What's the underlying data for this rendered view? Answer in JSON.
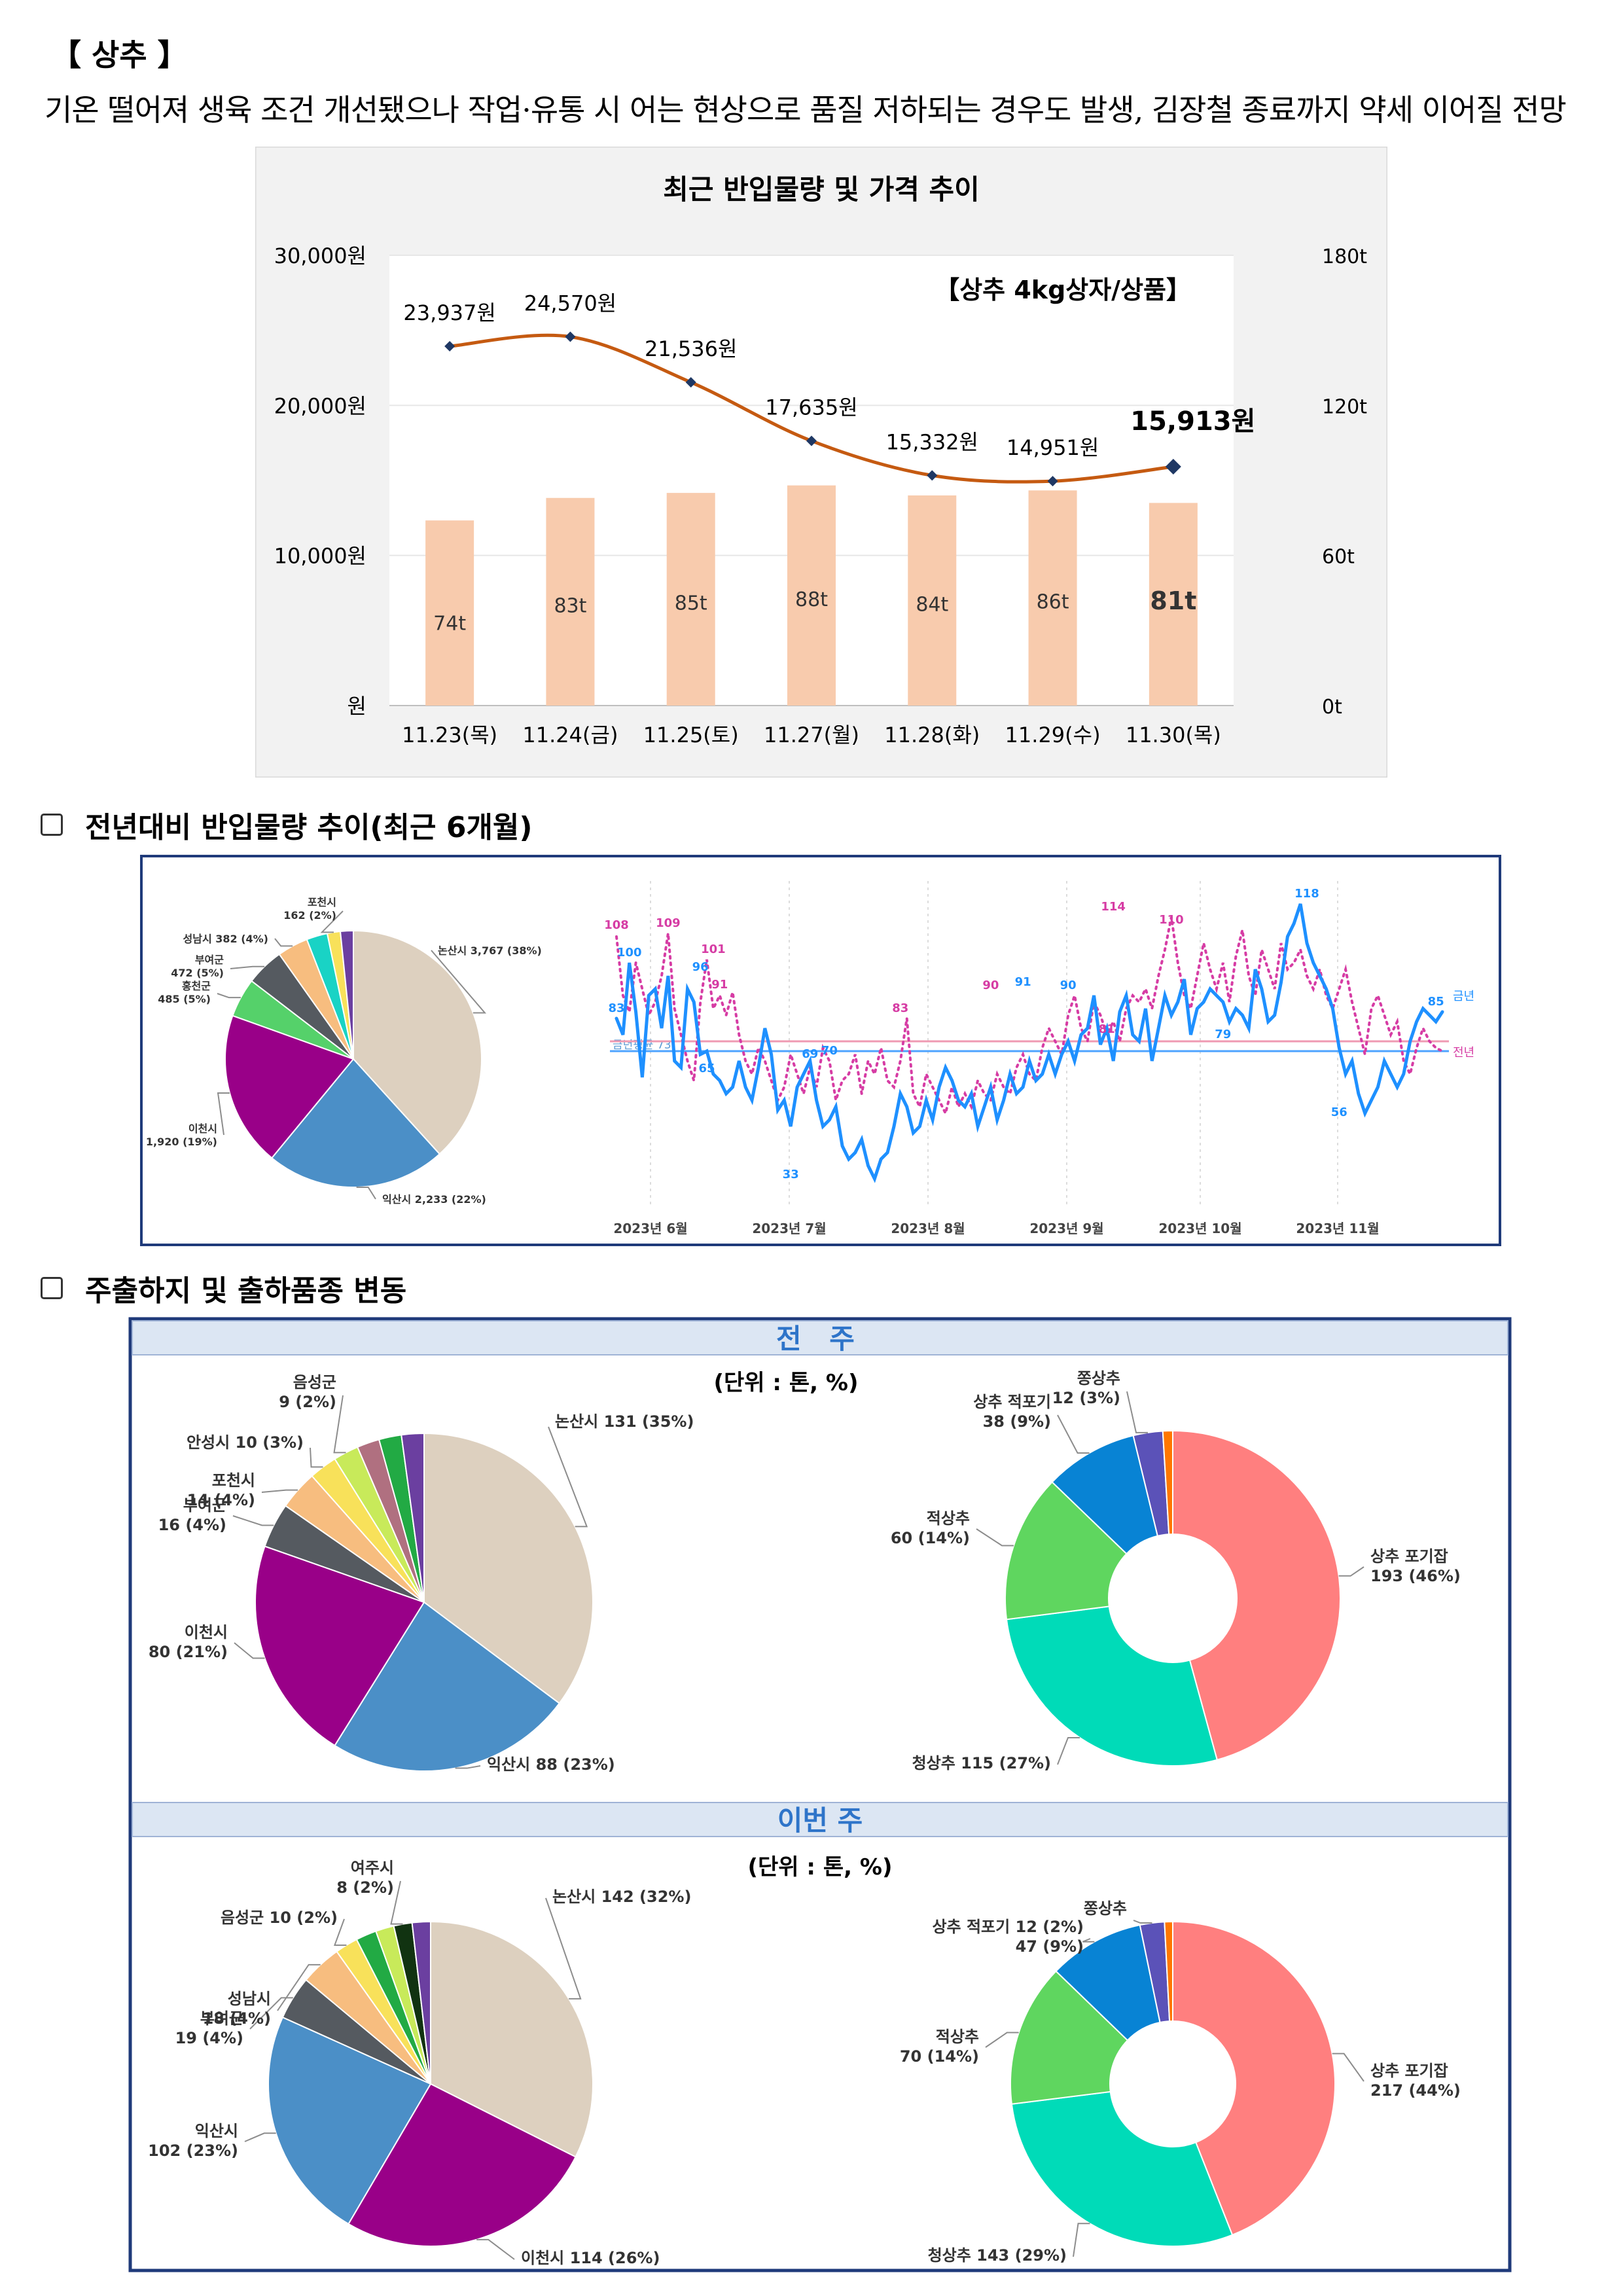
{
  "header": {
    "title": "【 상추 】",
    "subtitle": "기온 떨어져 생육 조건 개선됐으나 작업·유통 시 어는 현상으로 품질 저하되는 경우도 발생, 김장철 종료까지 약세 이어질 전망"
  },
  "sections": {
    "yoy": "전년대비 반입물량 추이(최근 6개월)",
    "shipping": "주출하지 및 출하품종 변동"
  },
  "chart_data": [
    {
      "id": "price_volume",
      "type": "bar+line",
      "title": "최근 반입물량 및 가격 추이",
      "annotation": "【상추 4kg상자/상품】",
      "categories": [
        "11.23(목)",
        "11.24(금)",
        "11.25(토)",
        "11.27(월)",
        "11.28(화)",
        "11.29(수)",
        "11.30(목)"
      ],
      "volume_t": [
        74,
        83,
        85,
        88,
        84,
        86,
        81
      ],
      "volume_labels": [
        "74t",
        "83t",
        "85t",
        "88t",
        "84t",
        "86t",
        "81t"
      ],
      "price_won": [
        23937,
        24570,
        21536,
        17635,
        15332,
        14951,
        15913
      ],
      "price_labels": [
        "23,937원",
        "24,570원",
        "21,536원",
        "17,635원",
        "15,332원",
        "14,951원",
        "15,913원"
      ],
      "y_left_ticks": [
        "30,000원",
        "20,000원",
        "10,000원",
        "원"
      ],
      "y_left_range": [
        0,
        30000
      ],
      "y_right_ticks": [
        "180t",
        "120t",
        "60t",
        "0t"
      ],
      "y_right_range": [
        0,
        180
      ],
      "colors": {
        "bar": "#f8cbad",
        "line": "#c55a11",
        "marker": "#1f3864",
        "panel": "#f2f2f2"
      }
    },
    {
      "id": "origin_pie_6m",
      "type": "pie",
      "slices": [
        {
          "label": "논산시 3,767 (38%)",
          "value": 3767,
          "color": "#ddd0bf"
        },
        {
          "label": "익산시 2,233 (22%)",
          "value": 2233,
          "color": "#4b8fc7"
        },
        {
          "label": "이천시\n1,920 (19%)",
          "value": 1920,
          "color": "#990088"
        },
        {
          "label": "홍천군\n485 (5%)",
          "value": 485,
          "color": "#55d16a"
        },
        {
          "label": "부여군\n472 (5%)",
          "value": 472,
          "color": "#555a60"
        },
        {
          "label": "성남시 382 (4%)",
          "value": 382,
          "color": "#f7bd7f"
        },
        {
          "label": "",
          "value": 260,
          "color": "#19d3c5"
        },
        {
          "label": "포천시\n162 (2%)",
          "value": 162,
          "color": "#f8e15a"
        },
        {
          "label": "",
          "value": 160,
          "color": "#6b3fa0"
        }
      ]
    },
    {
      "id": "yoy_line",
      "type": "line",
      "x_labels": [
        "2023년 6월",
        "2023년 7월",
        "2023년 8월",
        "2023년 9월",
        "2023년 10월",
        "2023년 11월"
      ],
      "series": [
        {
          "name": "금년",
          "color": "#1e90ff",
          "values": [
            83,
            78,
            100,
            85,
            65,
            90,
            92,
            80,
            96,
            70,
            68,
            92,
            88,
            72,
            73,
            66,
            64,
            60,
            62,
            70,
            62,
            58,
            68,
            80,
            72,
            55,
            58,
            50,
            62,
            66,
            70,
            58,
            50,
            52,
            56,
            44,
            40,
            42,
            46,
            38,
            34,
            40,
            42,
            50,
            60,
            56,
            48,
            50,
            58,
            52,
            62,
            68,
            64,
            58,
            56,
            60,
            50,
            56,
            62,
            52,
            58,
            66,
            60,
            62,
            70,
            64,
            66,
            72,
            66,
            72,
            76,
            70,
            78,
            80,
            90,
            75,
            80,
            70,
            85,
            90,
            78,
            76,
            86,
            70,
            80,
            90,
            84,
            88,
            95,
            78,
            86,
            88,
            92,
            90,
            88,
            82,
            86,
            84,
            80,
            98,
            92,
            82,
            84,
            94,
            108,
            112,
            118,
            106,
            100,
            96,
            92,
            86,
            74,
            66,
            70,
            60,
            54,
            58,
            62,
            70,
            66,
            62,
            66,
            76,
            82,
            86,
            84,
            82,
            85
          ]
        },
        {
          "name": "전년",
          "color": "#d63ca4",
          "values": [
            108,
            90,
            85,
            100,
            92,
            84,
            88,
            96,
            109,
            86,
            78,
            70,
            64,
            88,
            101,
            86,
            90,
            84,
            91,
            78,
            70,
            66,
            74,
            70,
            64,
            58,
            62,
            72,
            66,
            60,
            68,
            62,
            74,
            70,
            58,
            64,
            66,
            72,
            60,
            70,
            66,
            74,
            64,
            62,
            70,
            83,
            60,
            56,
            66,
            62,
            58,
            54,
            62,
            56,
            60,
            56,
            64,
            60,
            58,
            66,
            62,
            60,
            68,
            72,
            66,
            64,
            74,
            80,
            76,
            72,
            84,
            90,
            80,
            76,
            88,
            84,
            78,
            82,
            76,
            86,
            90,
            88,
            92,
            86,
            96,
            104,
            114,
            100,
            90,
            86,
            96,
            106,
            98,
            92,
            100,
            88,
            102,
            110,
            96,
            90,
            104,
            98,
            92,
            106,
            98,
            100,
            104,
            96,
            92,
            98,
            90,
            86,
            92,
            98,
            88,
            80,
            72,
            86,
            90,
            84,
            78,
            82,
            70,
            66,
            74,
            80,
            76,
            74,
            73
          ]
        }
      ],
      "baselines": [
        {
          "label": "금년평균 73",
          "value": 73,
          "color": "#4da3ff"
        },
        {
          "label": "",
          "value": 76,
          "color": "#ef9ab2"
        }
      ],
      "point_labels": [
        {
          "series": 0,
          "text": "100"
        },
        {
          "series": 0,
          "text": "83"
        },
        {
          "series": 0,
          "text": "65"
        },
        {
          "series": 0,
          "text": "96"
        },
        {
          "series": 0,
          "text": "70"
        },
        {
          "series": 0,
          "text": "33"
        },
        {
          "series": 0,
          "text": "69"
        },
        {
          "series": 0,
          "text": "91"
        },
        {
          "series": 0,
          "text": "90"
        },
        {
          "series": 0,
          "text": "79"
        },
        {
          "series": 0,
          "text": "118"
        },
        {
          "series": 0,
          "text": "56"
        },
        {
          "series": 0,
          "text": "85"
        },
        {
          "series": 1,
          "text": "108"
        },
        {
          "series": 1,
          "text": "109"
        },
        {
          "series": 1,
          "text": "101"
        },
        {
          "series": 1,
          "text": "91"
        },
        {
          "series": 1,
          "text": "83"
        },
        {
          "series": 1,
          "text": "90"
        },
        {
          "series": 1,
          "text": "114"
        },
        {
          "series": 1,
          "text": "110"
        },
        {
          "series": 1,
          "text": "81"
        }
      ],
      "legend": [
        "금년",
        "전년"
      ]
    },
    {
      "id": "prev_week",
      "header": "전 주",
      "unit": "(단위 : 톤, %)",
      "origin": [
        {
          "label": "논산시 131 (35%)",
          "value": 131,
          "color": "#ddd0bf"
        },
        {
          "label": "익산시 88 (23%)",
          "value": 88,
          "color": "#4b8fc7"
        },
        {
          "label": "이천시\n80 (21%)",
          "value": 80,
          "color": "#990088"
        },
        {
          "label": "부여군\n16 (4%)",
          "value": 16,
          "color": "#555a60"
        },
        {
          "label": "포천시\n14 (4%)",
          "value": 14,
          "color": "#f7bd7f"
        },
        {
          "label": "안성시 10 (3%)",
          "value": 10,
          "color": "#f8e15a"
        },
        {
          "label": "음성군\n9 (2%)",
          "value": 9,
          "color": "#c8ea5a"
        },
        {
          "label": "",
          "value": 8,
          "color": "#b07080"
        },
        {
          "label": "",
          "value": 8,
          "color": "#22aa44"
        },
        {
          "label": "",
          "value": 8,
          "color": "#6b3fa0"
        }
      ],
      "variety": [
        {
          "label": "상추 포기잡\n193 (46%)",
          "value": 193,
          "color": "#ff7f7f"
        },
        {
          "label": "청상추 115 (27%)",
          "value": 115,
          "color": "#00dbb8"
        },
        {
          "label": "적상추\n60 (14%)",
          "value": 60,
          "color": "#5fd65f"
        },
        {
          "label": "상추 적포기\n38 (9%)",
          "value": 38,
          "color": "#0883d4"
        },
        {
          "label": "쫑상추\n12 (3%)",
          "value": 12,
          "color": "#5b52b8"
        },
        {
          "label": "",
          "value": 4,
          "color": "#ff7700"
        }
      ]
    },
    {
      "id": "this_week",
      "header": "이번 주",
      "unit": "(단위 : 톤, %)",
      "origin": [
        {
          "label": "논산시 142 (32%)",
          "value": 142,
          "color": "#ddd0bf"
        },
        {
          "label": "이천시 114 (26%)",
          "value": 114,
          "color": "#990088"
        },
        {
          "label": "익산시\n102 (23%)",
          "value": 102,
          "color": "#4b8fc7"
        },
        {
          "label": "부여군\n19 (4%)",
          "value": 19,
          "color": "#555a60"
        },
        {
          "label": "성남시\n18 (4%)",
          "value": 18,
          "color": "#f7bd7f"
        },
        {
          "label": "음성군 10 (2%)",
          "value": 10,
          "color": "#f8e15a"
        },
        {
          "label": "",
          "value": 9,
          "color": "#22aa44"
        },
        {
          "label": "",
          "value": 8,
          "color": "#c8ea5a"
        },
        {
          "label": "여주시\n8 (2%)",
          "value": 8,
          "color": "#113311"
        },
        {
          "label": "",
          "value": 8,
          "color": "#6b3fa0"
        }
      ],
      "variety": [
        {
          "label": "상추 포기잡\n217 (44%)",
          "value": 217,
          "color": "#ff7f7f"
        },
        {
          "label": "청상추 143 (29%)",
          "value": 143,
          "color": "#00dbb8"
        },
        {
          "label": "적상추\n70 (14%)",
          "value": 70,
          "color": "#5fd65f"
        },
        {
          "label": "상추 적포기 12 (2%)\n47 (9%)",
          "value": 47,
          "color": "#0883d4"
        },
        {
          "label": "쫑상추",
          "value": 12,
          "color": "#5b52b8"
        },
        {
          "label": "",
          "value": 4,
          "color": "#ff7700"
        }
      ]
    }
  ]
}
